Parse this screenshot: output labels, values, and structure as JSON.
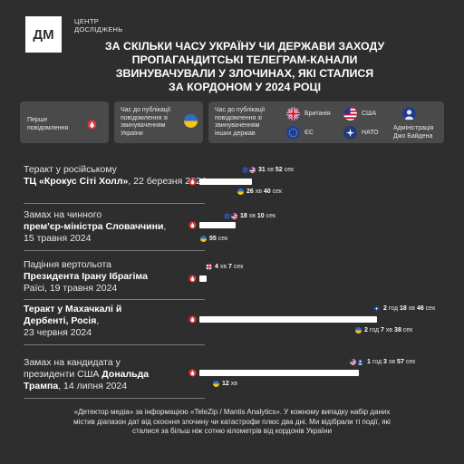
{
  "logo": {
    "mark": "ДМ",
    "line1": "ЦЕНТР",
    "line2": "ДОСЛІДЖЕНЬ"
  },
  "title": {
    "l1": "ЗА СКІЛЬКИ ЧАСУ УКРАЇНУ ЧИ ДЕРЖАВИ ЗАХОДУ",
    "l2": "ПРОПАГАНДИТСЬКІ ТЕЛЕГРАМ-КАНАЛИ",
    "l3": "ЗВИНУВАЧУВАЛИ У ЗЛОЧИНАХ, ЯКІ СТАЛИСЯ",
    "l4": "ЗА КОРДОНОМ У 2024 РОЦІ"
  },
  "legend": {
    "first_l1": "Перше",
    "first_l2": "повідомлення",
    "ukraine_l1": "Час до публікації",
    "ukraine_l2": "повідомлення зі",
    "ukraine_l3": "звинуваченням",
    "ukraine_l4": "України",
    "other_l1": "Час до публікації",
    "other_l2": "повідомлення зі",
    "other_l3": "звинуваченням",
    "other_l4": "інших держав",
    "britain": "Британія",
    "usa": "США",
    "eu": "ЄС",
    "nato": "НАТО",
    "biden_l1": "Адміністрація",
    "biden_l2": "Джо Байдена"
  },
  "colors": {
    "background": "#2e2e2e",
    "accent_red": "#e0363b",
    "ukraine_blue": "#2f6fc0",
    "ukraine_yellow": "#f5c518",
    "usa_red": "#c8102e",
    "usa_blue": "#1f3a93",
    "eu_blue": "#1b3fa0",
    "nato_blue": "#1d3b7a"
  },
  "events": [
    {
      "pre": "Теракт у російському",
      "bold": "ТЦ «Крокус Сіті Холл»",
      "post": ", 22 березня 2024",
      "line2_pre": "",
      "line2_bold": "",
      "line2_post": "",
      "other_time_bold": "31",
      "other_time_rest": " хв ",
      "other_time_b2": "52",
      "other_time_r2": " сек",
      "ua_time_bold": "26",
      "ua_time_rest": " хв ",
      "ua_time_b2": "40",
      "ua_time_r2": " сек",
      "other_flags": [
        "eu-flag-icon",
        "usa-flag-icon"
      ]
    },
    {
      "pre": "Замах на чинного",
      "bold": "прем'єр-міністра Словаччини",
      "post": ",",
      "line3": "15 травня 2024",
      "other_time_bold": "18",
      "other_time_rest": " хв ",
      "other_time_b2": "10",
      "other_time_r2": " сек",
      "ua_time_bold": "55",
      "ua_time_rest": " сек",
      "other_flags": [
        "eu-flag-icon",
        "usa-flag-icon"
      ]
    },
    {
      "pre": "Падіння вертольота",
      "bold": "Президента Ірану Ібрагіма",
      "line3": "Раїсі, 19 травня 2024",
      "other_time_bold": "4",
      "other_time_rest": " хв ",
      "other_time_b2": "7",
      "other_time_r2": " сек",
      "other_flags": [
        "britain-flag-icon"
      ]
    },
    {
      "bold1": "Теракт у Махачкалі й",
      "bold2": "Дербенті, Росія",
      "post2": ",",
      "line3": "23 червня 2024",
      "other_time_bold": "2",
      "other_time_rest": " год ",
      "other_time_b2": "18",
      "other_time_r2": " хв ",
      "other_time_b3": "46",
      "other_time_r3": " сек",
      "ua_time_bold": "2",
      "ua_time_rest": " год ",
      "ua_time_b2": "7",
      "ua_time_r2": " хв ",
      "ua_time_b3": "38",
      "ua_time_r3": " сек",
      "other_flags": [
        "nato-flag-icon"
      ]
    },
    {
      "pre": "Замах на кандидата у",
      "pre2": "президенти США ",
      "bold2": "Дональда",
      "bold3": "Трампа",
      "post3": ", 14 липня 2024",
      "other_time_bold": "1",
      "other_time_rest": " год ",
      "other_time_b2": "3",
      "other_time_r2": " хв ",
      "other_time_b3": "57",
      "other_time_r3": " сек",
      "ua_time_bold": "12",
      "ua_time_rest": " хв",
      "other_flags": [
        "usa-flag-icon",
        "biden-admin-icon"
      ]
    }
  ],
  "footer": {
    "l1": "«Детектор медіа» за інформацією «TeleZip / Mantis Analytics». У кожному випадку набір даних",
    "l2": "містив діапазон дат від скоєння злочину чи катастрофи плюс два дні. Ми відібрали ті події, які",
    "l3": "сталися за більш ніж сотню кілометрів від кордонів України"
  }
}
